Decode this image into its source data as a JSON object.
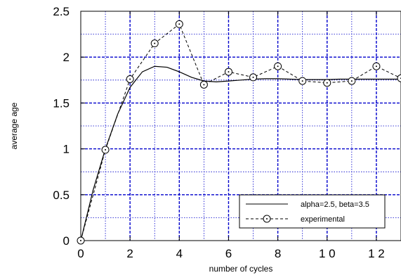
{
  "chart_data": {
    "type": "line",
    "title": "",
    "xlabel": "number of cycles",
    "ylabel": "average age",
    "xlim": [
      0,
      13
    ],
    "ylim": [
      0,
      2.5
    ],
    "x_ticks": [
      0,
      2,
      4,
      6,
      8,
      10,
      12
    ],
    "x_tick_labels": [
      "0",
      "2",
      "4",
      "6",
      "8",
      "1 0",
      "1 2"
    ],
    "y_ticks": [
      0,
      0.5,
      1,
      1.5,
      2,
      2.5
    ],
    "y_tick_labels": [
      "0",
      "0.5",
      "1",
      "1.5",
      "2",
      "2.5"
    ],
    "grid": true,
    "legend_position": "lower-right",
    "series": [
      {
        "name": "alpha=2.5, beta=3.5",
        "style": "solid",
        "marker": "none",
        "color": "#000000",
        "x": [
          0,
          0.5,
          1,
          1.5,
          2,
          2.5,
          3,
          3.5,
          4,
          4.5,
          5,
          5.5,
          6,
          6.5,
          7,
          7.5,
          8,
          8.5,
          9,
          9.5,
          10,
          10.5,
          11,
          11.5,
          12,
          12.5,
          13
        ],
        "y": [
          0,
          0.55,
          1.0,
          1.38,
          1.67,
          1.84,
          1.9,
          1.89,
          1.84,
          1.78,
          1.74,
          1.73,
          1.74,
          1.75,
          1.76,
          1.765,
          1.765,
          1.76,
          1.755,
          1.755,
          1.755,
          1.76,
          1.76,
          1.76,
          1.76,
          1.76,
          1.76
        ]
      },
      {
        "name": "experimental",
        "style": "dashed",
        "marker": "circle-dot",
        "color": "#000000",
        "x": [
          0,
          1,
          2,
          3,
          4,
          5,
          6,
          7,
          8,
          9,
          10,
          11,
          12,
          13
        ],
        "y": [
          0,
          0.99,
          1.76,
          2.15,
          2.36,
          1.7,
          1.84,
          1.78,
          1.9,
          1.74,
          1.72,
          1.74,
          1.9,
          1.77
        ]
      }
    ]
  }
}
